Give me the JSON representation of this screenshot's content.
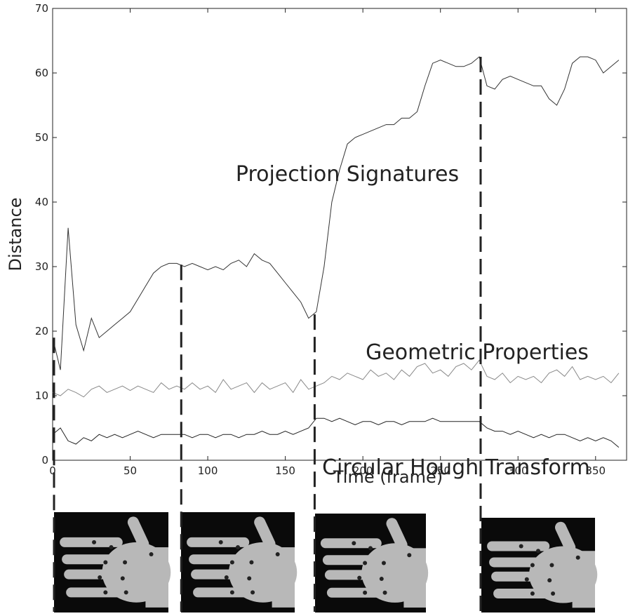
{
  "chart_data": {
    "type": "line",
    "x_label": "Time (frame)",
    "y_label": "Distance",
    "x": [
      0,
      5,
      10,
      15,
      20,
      25,
      30,
      35,
      40,
      45,
      50,
      55,
      60,
      65,
      70,
      75,
      80,
      85,
      90,
      95,
      100,
      105,
      110,
      115,
      120,
      125,
      130,
      135,
      140,
      145,
      150,
      155,
      160,
      165,
      170,
      175,
      180,
      185,
      190,
      195,
      200,
      205,
      210,
      215,
      220,
      225,
      230,
      235,
      240,
      245,
      250,
      255,
      260,
      265,
      270,
      275,
      280,
      285,
      290,
      295,
      300,
      305,
      310,
      315,
      320,
      325,
      330,
      335,
      340,
      345,
      350,
      355,
      360,
      365
    ],
    "series": [
      {
        "name": "Projection Signatures",
        "color": "#333333",
        "values": [
          19,
          14,
          36,
          21,
          17,
          22,
          19,
          20,
          21,
          22,
          23,
          25,
          27,
          29,
          30,
          30.5,
          30.5,
          30,
          30.5,
          30,
          29.5,
          30,
          29.5,
          30.5,
          31,
          30,
          32,
          31,
          30.5,
          29,
          27.5,
          26,
          24.5,
          22,
          23,
          30,
          40,
          45,
          49,
          50,
          50.5,
          51,
          51.5,
          52,
          52,
          53,
          53,
          54,
          58,
          61.5,
          62,
          61.5,
          61,
          61,
          61.5,
          62.5,
          58,
          57.5,
          59,
          59.5,
          59,
          58.5,
          58,
          58,
          56,
          55,
          57.5,
          61.5,
          62.5,
          62.5,
          62,
          60,
          61,
          62
        ]
      },
      {
        "name": "Geometric Properties",
        "color": "#888888",
        "values": [
          10.5,
          10,
          11,
          10.5,
          9.8,
          11,
          11.5,
          10.5,
          11,
          11.5,
          10.8,
          11.5,
          11,
          10.5,
          12,
          11,
          11.5,
          11,
          12,
          11,
          11.5,
          10.5,
          12.5,
          11,
          11.5,
          12,
          10.5,
          12,
          11,
          11.5,
          12,
          10.5,
          12.5,
          11,
          11.5,
          12,
          13,
          12.5,
          13.5,
          13,
          12.5,
          14,
          13,
          13.5,
          12.5,
          14,
          13,
          14.5,
          15,
          13.5,
          14,
          13,
          14.5,
          15,
          14,
          15.5,
          13,
          12.5,
          13.5,
          12,
          13,
          12.5,
          13,
          12,
          13.5,
          14,
          13,
          14.5,
          12.5,
          13,
          12.5,
          13,
          12,
          13.5
        ]
      },
      {
        "name": "Circular Hough Transform",
        "color": "#222222",
        "values": [
          4,
          5,
          3,
          2.5,
          3.5,
          3,
          4,
          3.5,
          4,
          3.5,
          4,
          4.5,
          4,
          3.5,
          4,
          4,
          4,
          4,
          3.5,
          4,
          4,
          3.5,
          4,
          4,
          3.5,
          4,
          4,
          4.5,
          4,
          4,
          4.5,
          4,
          4.5,
          5,
          6.5,
          6.5,
          6,
          6.5,
          6,
          5.5,
          6,
          6,
          5.5,
          6,
          6,
          5.5,
          6,
          6,
          6,
          6.5,
          6,
          6,
          6,
          6,
          6,
          6,
          5,
          4.5,
          4.5,
          4,
          4.5,
          4,
          3.5,
          4,
          3.5,
          4,
          4,
          3.5,
          3,
          3.5,
          3,
          3.5,
          3,
          2
        ]
      }
    ],
    "event_frames": [
      0,
      82,
      168,
      275
    ],
    "xlim": [
      0,
      370
    ],
    "xticks": [
      0,
      50,
      100,
      150,
      200,
      250,
      300,
      350
    ],
    "ylim": [
      0,
      70
    ],
    "yticks": [
      0,
      10,
      20,
      30,
      40,
      50,
      60,
      70
    ]
  }
}
